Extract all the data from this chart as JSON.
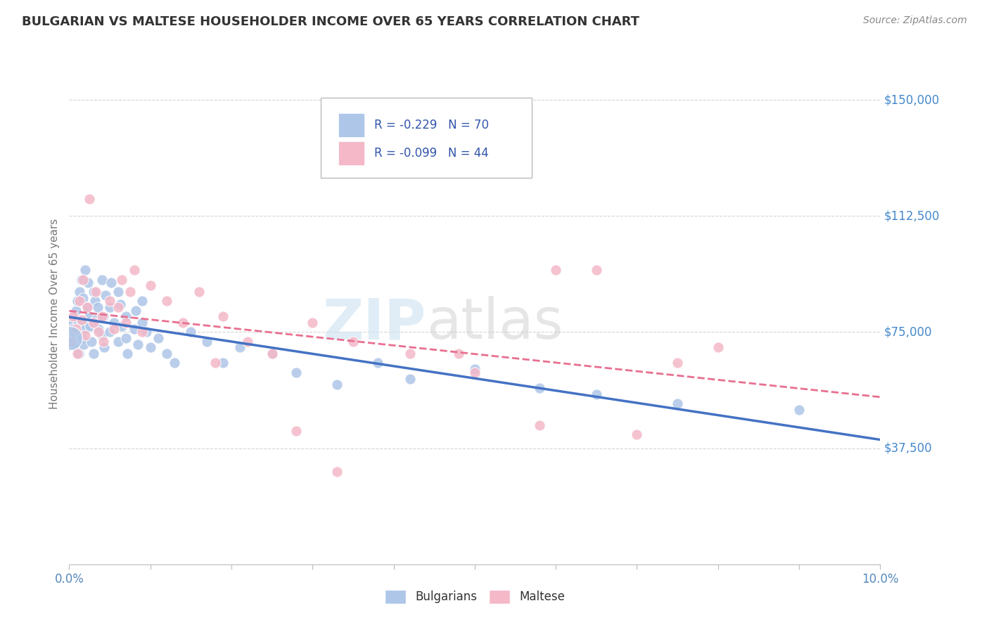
{
  "title": "BULGARIAN VS MALTESE HOUSEHOLDER INCOME OVER 65 YEARS CORRELATION CHART",
  "source": "Source: ZipAtlas.com",
  "ylabel": "Householder Income Over 65 years",
  "yticks": [
    0,
    37500,
    75000,
    112500,
    150000
  ],
  "ytick_labels": [
    "",
    "$37,500",
    "$75,000",
    "$112,500",
    "$150,000"
  ],
  "xlim": [
    0.0,
    0.1
  ],
  "ylim": [
    15000,
    162000
  ],
  "background_color": "#ffffff",
  "grid_color": "#cccccc",
  "watermark_zip": "ZIP",
  "watermark_atlas": "atlas",
  "legend_text1": "R = -0.229   N = 70",
  "legend_text2": "R = -0.099   N = 44",
  "bulgarian_color": "#aec6e8",
  "maltese_color": "#f4b8c8",
  "bulgarian_line_color": "#4472c4",
  "maltese_line_color": "#e87090",
  "scatter_size": 120,
  "bulgarians_x": [
    0.0002,
    0.0003,
    0.0005,
    0.0006,
    0.0007,
    0.0008,
    0.0009,
    0.001,
    0.001,
    0.0012,
    0.0013,
    0.0014,
    0.0015,
    0.0015,
    0.0016,
    0.0017,
    0.0018,
    0.002,
    0.002,
    0.0022,
    0.0023,
    0.0025,
    0.0026,
    0.0027,
    0.003,
    0.003,
    0.0032,
    0.0033,
    0.0035,
    0.0036,
    0.004,
    0.004,
    0.0042,
    0.0043,
    0.0045,
    0.005,
    0.005,
    0.0052,
    0.0055,
    0.006,
    0.006,
    0.0063,
    0.0065,
    0.007,
    0.007,
    0.0072,
    0.008,
    0.0082,
    0.0085,
    0.009,
    0.009,
    0.0095,
    0.01,
    0.011,
    0.012,
    0.013,
    0.015,
    0.017,
    0.019,
    0.021,
    0.025,
    0.028,
    0.033,
    0.038,
    0.042,
    0.05,
    0.058,
    0.065,
    0.075,
    0.09
  ],
  "bulgarians_y": [
    78000,
    72000,
    76000,
    80000,
    75000,
    82000,
    70000,
    85000,
    79000,
    68000,
    88000,
    74000,
    92000,
    78000,
    73000,
    86000,
    71000,
    95000,
    76000,
    83000,
    91000,
    80000,
    77000,
    72000,
    88000,
    68000,
    85000,
    79000,
    83000,
    76000,
    92000,
    74000,
    80000,
    70000,
    87000,
    83000,
    75000,
    91000,
    78000,
    88000,
    72000,
    84000,
    77000,
    80000,
    73000,
    68000,
    76000,
    82000,
    71000,
    85000,
    78000,
    75000,
    70000,
    73000,
    68000,
    65000,
    75000,
    72000,
    65000,
    70000,
    68000,
    62000,
    58000,
    65000,
    60000,
    63000,
    57000,
    55000,
    52000,
    50000
  ],
  "maltese_x": [
    0.0002,
    0.0005,
    0.0008,
    0.001,
    0.0013,
    0.0015,
    0.0017,
    0.002,
    0.0022,
    0.0025,
    0.003,
    0.0033,
    0.0036,
    0.004,
    0.0042,
    0.005,
    0.0055,
    0.006,
    0.0065,
    0.007,
    0.0075,
    0.008,
    0.009,
    0.01,
    0.012,
    0.014,
    0.016,
    0.019,
    0.022,
    0.025,
    0.03,
    0.035,
    0.042,
    0.05,
    0.058,
    0.06,
    0.065,
    0.07,
    0.075,
    0.08,
    0.048,
    0.028,
    0.018,
    0.033
  ],
  "maltese_y": [
    72000,
    80000,
    76000,
    68000,
    85000,
    79000,
    92000,
    74000,
    83000,
    118000,
    78000,
    88000,
    75000,
    80000,
    72000,
    85000,
    76000,
    83000,
    92000,
    78000,
    88000,
    95000,
    75000,
    90000,
    85000,
    78000,
    88000,
    80000,
    72000,
    68000,
    78000,
    72000,
    68000,
    62000,
    45000,
    95000,
    95000,
    42000,
    65000,
    70000,
    68000,
    43000,
    65000,
    30000
  ]
}
